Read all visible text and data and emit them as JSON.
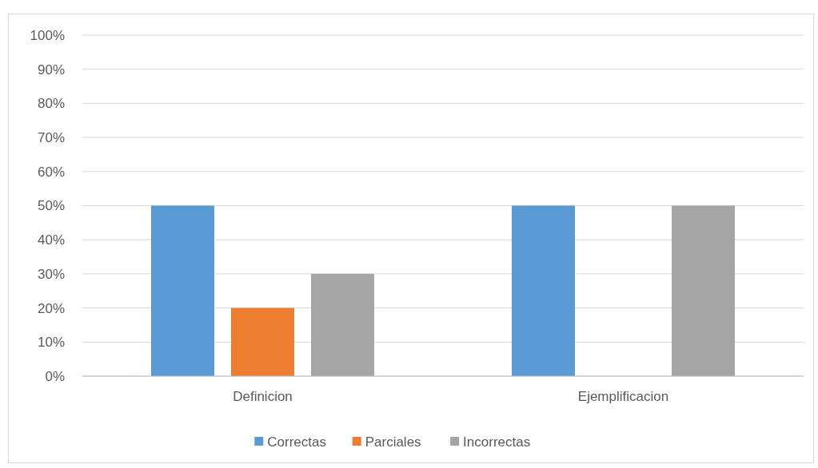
{
  "chart_data": {
    "type": "bar",
    "categories": [
      "Definicion",
      "Ejemplificacion"
    ],
    "series": [
      {
        "name": "Correctas",
        "color": "#5b9bd5",
        "values": [
          50,
          50
        ]
      },
      {
        "name": "Parciales",
        "color": "#ed7d31",
        "values": [
          20,
          0
        ]
      },
      {
        "name": "Incorrectas",
        "color": "#a5a5a5",
        "values": [
          30,
          50
        ]
      }
    ],
    "ylim": [
      0,
      100
    ],
    "yticks": [
      {
        "value": 0,
        "label": "0%"
      },
      {
        "value": 10,
        "label": "10%"
      },
      {
        "value": 20,
        "label": "20%"
      },
      {
        "value": 30,
        "label": "30%"
      },
      {
        "value": 40,
        "label": "40%"
      },
      {
        "value": 50,
        "label": "50%"
      },
      {
        "value": 60,
        "label": "60%"
      },
      {
        "value": 70,
        "label": "70%"
      },
      {
        "value": 80,
        "label": "80%"
      },
      {
        "value": 90,
        "label": "90%"
      },
      {
        "value": 100,
        "label": "100%"
      }
    ],
    "grid": "y",
    "legend": "bottom"
  }
}
